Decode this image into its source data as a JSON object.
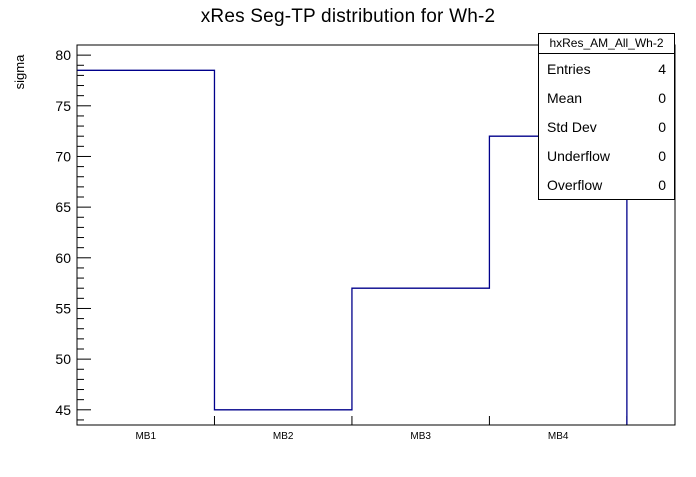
{
  "chart_data": {
    "type": "histogram-step",
    "title": "xRes Seg-TP distribution for Wh-2",
    "xlabel": "",
    "ylabel": "sigma",
    "categories": [
      "MB1",
      "MB2",
      "MB3",
      "MB4"
    ],
    "values": [
      78.5,
      45,
      57,
      72
    ],
    "x_edges": [
      0,
      1,
      2,
      3,
      4
    ],
    "xlim": [
      0,
      4.35
    ],
    "ylim": [
      43.5,
      81
    ],
    "y_major_ticks": [
      45,
      50,
      55,
      60,
      65,
      70,
      75,
      80
    ],
    "y_minor_step": 1,
    "grid": false,
    "legend_position": "none",
    "line_color": "#00008b",
    "frame_color": "#000000"
  },
  "stats": {
    "title": "hxRes_AM_All_Wh-2",
    "rows": [
      {
        "label": "Entries",
        "value": "4"
      },
      {
        "label": "Mean",
        "value": "0"
      },
      {
        "label": "Std Dev",
        "value": "0"
      },
      {
        "label": "Underflow",
        "value": "0"
      },
      {
        "label": "Overflow",
        "value": "0"
      }
    ]
  }
}
